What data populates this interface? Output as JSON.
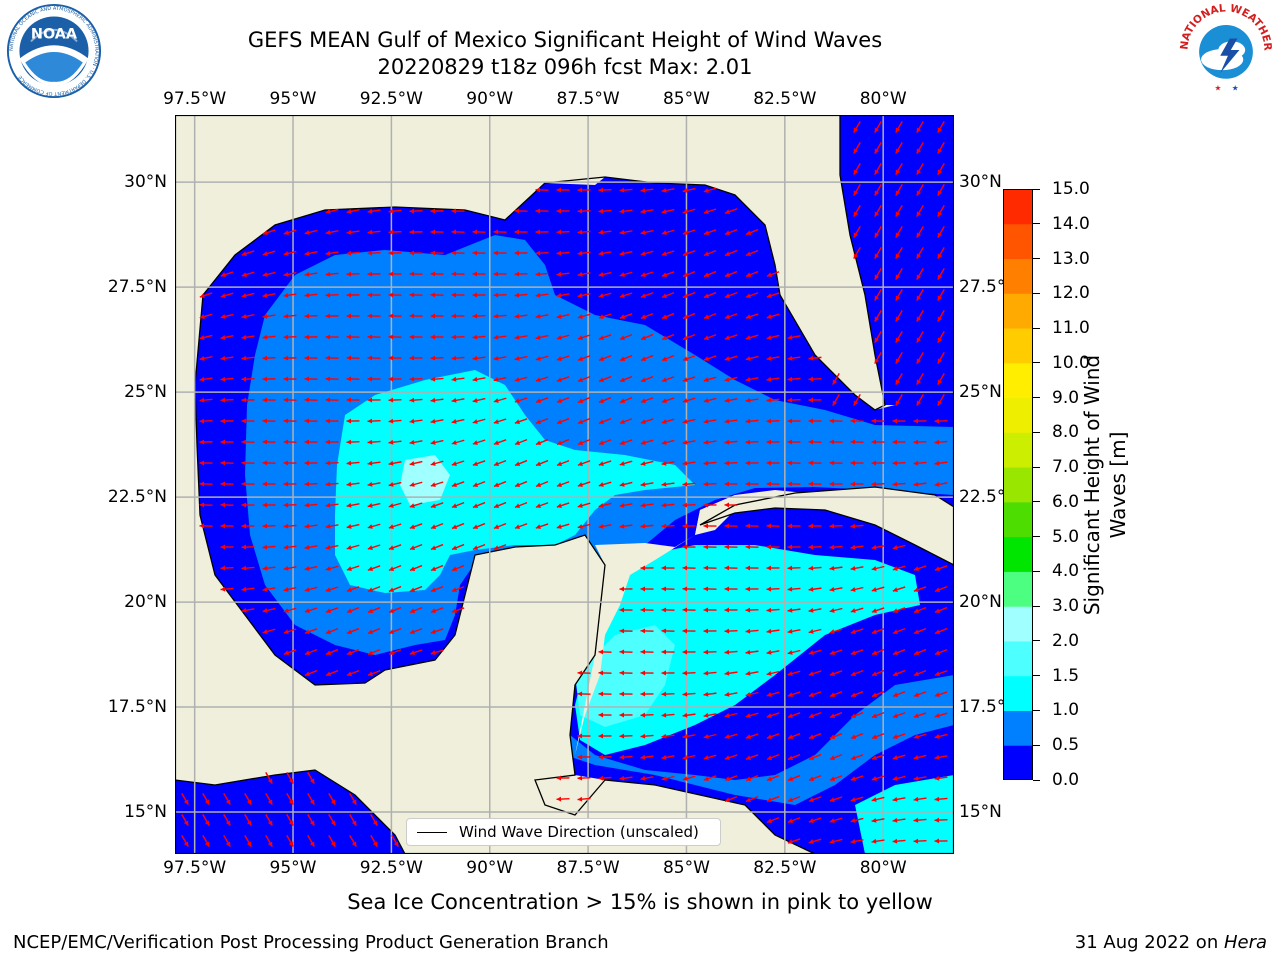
{
  "header": {
    "title_line1": "GEFS MEAN Gulf of Mexico Significant Height of Wind Waves",
    "title_line2": "20220829 t18z 096h fcst   Max: 2.01"
  },
  "logos": {
    "left": {
      "name": "NOAA",
      "text": "NOAA",
      "ring_text": "NATIONAL OCEANIC AND ATMOSPHERIC ADMINISTRATION · U.S. DEPARTMENT OF COMMERCE",
      "color": "#1a5fa8"
    },
    "right": {
      "name": "National Weather Service",
      "ring_text": "NATIONAL WEATHER SERVICE",
      "color": "#d41e1e"
    }
  },
  "map": {
    "lon_labels": [
      "97.5°W",
      "95°W",
      "92.5°W",
      "90°W",
      "87.5°W",
      "85°W",
      "82.5°W",
      "80°W"
    ],
    "lon_values": [
      -97.5,
      -95,
      -92.5,
      -90,
      -87.5,
      -85,
      -82.5,
      -80
    ],
    "lat_labels_left": [
      "30°N",
      "27.5°N",
      "25°N",
      "22.5°N",
      "20°N",
      "17.5°N",
      "15°N"
    ],
    "lat_labels_right": [
      "30°N",
      "27.5°N",
      "25°N",
      "22.5°N",
      "20°N",
      "17.5°N",
      "15°N"
    ],
    "lat_values": [
      30,
      27.5,
      25,
      22.5,
      20,
      17.5,
      15
    ],
    "extent": {
      "lon_min": -98,
      "lon_max": -78.2,
      "lat_min": 14,
      "lat_max": 31.6
    },
    "land_color": "#efefdb",
    "grid_color": "#b0b0b0",
    "arrow_color": "#ff0000",
    "legend_label": "Wind Wave Direction (unscaled)",
    "contour_fields": [
      {
        "level": "0.0-0.5",
        "color": "#0000ff"
      },
      {
        "level": "0.5-1.0",
        "color": "#0080ff"
      },
      {
        "level": "1.0-1.5",
        "color": "#00ffff"
      },
      {
        "level": "1.5-2.0",
        "color": "#4dffff"
      },
      {
        "level": "2.0-3.0",
        "color": "#a0ffff"
      }
    ]
  },
  "colorbar": {
    "label": "Significant Height of Wind\nWaves [m]",
    "ticks": [
      "0.0",
      "0.5",
      "1.0",
      "1.5",
      "2.0",
      "3.0",
      "4.0",
      "5.0",
      "6.0",
      "7.0",
      "8.0",
      "9.0",
      "10.0",
      "11.0",
      "12.0",
      "13.0",
      "14.0",
      "15.0"
    ],
    "colors": [
      "#0000ff",
      "#0080ff",
      "#00ffff",
      "#4dffff",
      "#a0ffff",
      "#4dff80",
      "#00e600",
      "#4ddd00",
      "#99e600",
      "#ccee00",
      "#eeee00",
      "#ffee00",
      "#ffcc00",
      "#ffaa00",
      "#ff8000",
      "#ff5500",
      "#ff2a00"
    ]
  },
  "footer": {
    "note": "Sea Ice Concentration > 15% is shown in pink to yellow",
    "left": "NCEP/EMC/Verification Post Processing Product Generation Branch",
    "right_prefix": "31 Aug 2022 on ",
    "right_machine": "Hera"
  }
}
